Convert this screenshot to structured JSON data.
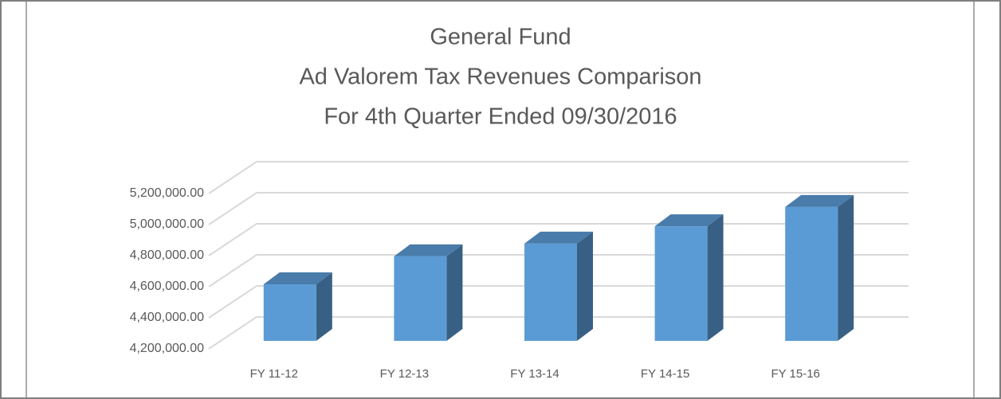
{
  "chart_data": {
    "type": "bar3d",
    "title": [
      "General Fund",
      "Ad Valorem Tax Revenues Comparison",
      "For 4th Quarter Ended 09/30/2016"
    ],
    "categories": [
      "FY 11-12",
      "FY 12-13",
      "FY 13-14",
      "FY 14-15",
      "FY 15-16"
    ],
    "values": [
      4564000,
      4744000,
      4826000,
      4938000,
      5062000
    ],
    "color": "#5b9bd5",
    "ylim": [
      4200000,
      5200000
    ],
    "yticks": [
      {
        "value": 4200000,
        "label": "4,200,000.00"
      },
      {
        "value": 4400000,
        "label": "4,400,000.00"
      },
      {
        "value": 4600000,
        "label": "4,600,000.00"
      },
      {
        "value": 4800000,
        "label": "4,800,000.00"
      },
      {
        "value": 5000000,
        "label": "5,000,000.00"
      },
      {
        "value": 5200000,
        "label": "5,200,000.00"
      }
    ],
    "grid": true
  }
}
